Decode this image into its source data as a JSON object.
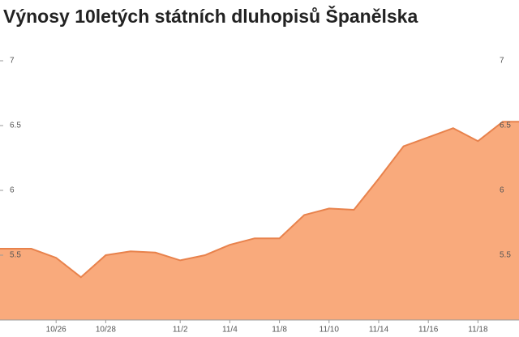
{
  "chart_data": {
    "type": "area",
    "title": "Výnosy 10letých státních dluhopisů Španělska",
    "categories": [
      null,
      null,
      "10/26",
      null,
      "10/28",
      null,
      null,
      "11/2",
      null,
      "11/4",
      null,
      "11/8",
      null,
      "11/10",
      null,
      "11/14",
      null,
      "11/16",
      null,
      "11/18",
      null
    ],
    "values": [
      5.55,
      5.55,
      5.48,
      5.33,
      5.5,
      5.53,
      5.52,
      5.46,
      5.5,
      5.58,
      5.63,
      5.63,
      5.81,
      5.86,
      5.85,
      6.09,
      6.34,
      6.41,
      6.48,
      6.38,
      6.53
    ],
    "color": "#f9aa7c",
    "line_color": "#e8824c",
    "ylim": [
      5,
      7.2
    ],
    "yticks": [
      5.5,
      6,
      6.5,
      7
    ]
  }
}
